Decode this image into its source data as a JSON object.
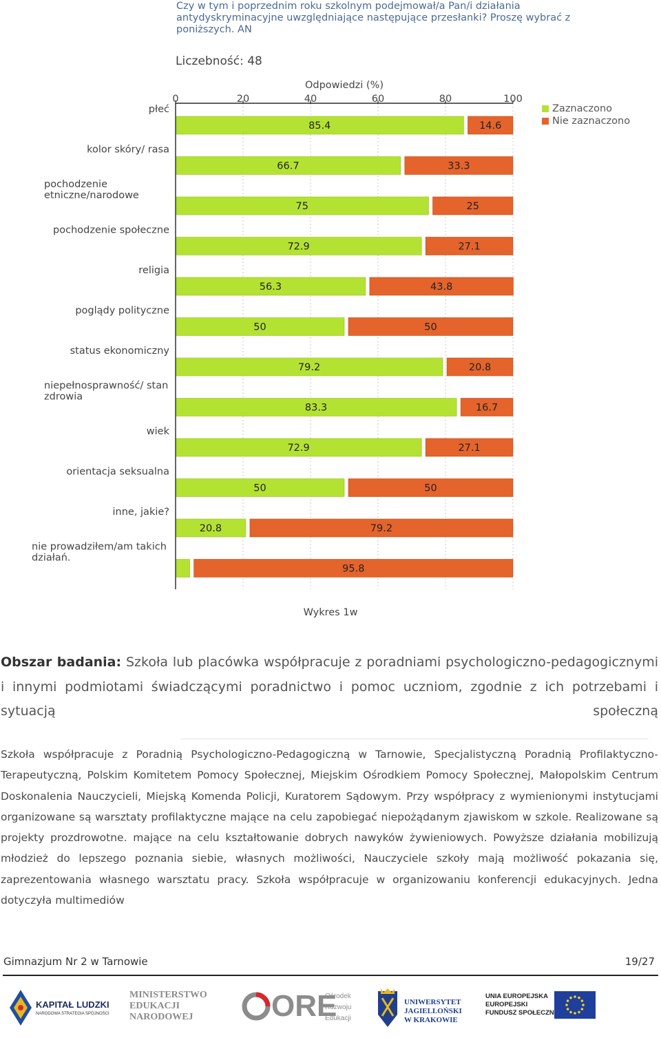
{
  "chart": {
    "title": "Czy w tym i poprzednim roku szkolnym podejmował/a Pan/i działania antydyskryminacyjne uwzględniające następujące przesłanki? Proszę wybrać z poniższych. AN",
    "count_label": "Liczebność: 48",
    "axis_title": "Odpowiedzi (%)",
    "caption": "Wykres 1w",
    "colors": {
      "selected": "#b4e233",
      "not_selected": "#e4642c",
      "axis": "#000000",
      "grid": "#c8c8c8"
    }
  },
  "chart_data": {
    "type": "bar",
    "orientation": "horizontal",
    "stacked": true,
    "xlabel": "Odpowiedzi (%)",
    "xlim": [
      0,
      100
    ],
    "xticks": [
      0,
      20,
      40,
      60,
      80,
      100
    ],
    "legend_position": "top-right",
    "categories": [
      "płeć",
      "kolor skóry/ rasa",
      "pochodzenie etniczne/narodowe",
      "pochodzenie społeczne",
      "religia",
      "poglądy polityczne",
      "status ekonomiczny",
      "niepełnosprawność/ stan zdrowia",
      "wiek",
      "orientacja seksualna",
      "inne, jakie?",
      "nie prowadziłem/am takich działań."
    ],
    "series": [
      {
        "name": "Zaznaczono",
        "color": "#b4e233",
        "values": [
          85.4,
          66.7,
          75,
          72.9,
          56.3,
          50,
          79.2,
          83.3,
          72.9,
          50,
          20.8,
          4.2
        ]
      },
      {
        "name": "Nie zaznaczono",
        "color": "#e4642c",
        "values": [
          14.6,
          33.3,
          25,
          27.1,
          43.8,
          50,
          20.8,
          16.7,
          27.1,
          50,
          79.2,
          95.8
        ]
      }
    ]
  },
  "area": {
    "label": "Obszar badania:",
    "text": "Szkoła lub placówka współpracuje z poradniami psychologiczno-pedagogicznymi i innymi podmiotami świadczącymi poradnictwo i pomoc uczniom, zgodnie z ich potrzebami i sytuacją społeczną"
  },
  "body_text": "Szkoła współpracuje z Poradnią Psychologiczno-Pedagogiczną w Tarnowie, Specjalistyczną Poradnią Profilaktyczno-Terapeutyczną, Polskim Komitetem Pomocy Społecznej, Miejskim Ośrodkiem Pomocy Społecznej, Małopolskim Centrum Doskonalenia Nauczycieli, Miejską Komenda Policji, Kuratorem Sądowym. Przy współpracy z wymienionymi instytucjami organizowane są warsztaty profilaktyczne mające na celu zapobiegać niepożądanym zjawiskom w szkole. Realizowane są projekty prozdrowotne. mające na celu kształtowanie dobrych nawyków żywieniowych. Powyższe działania mobilizują młodzież do lepszego poznania siebie, własnych możliwości, Nauczyciele szkoły mają możliwość pokazania się, zaprezentowania własnego warsztatu pracy. Szkoła współpracuje w organizowaniu konferencji edukacyjnych. Jedna dotyczyła multimediów",
  "footer": {
    "school": "Gimnazjum Nr 2 w Tarnowie",
    "page": "19/27"
  },
  "logos": {
    "kapital": {
      "line1": "KAPITAŁ LUDZKI",
      "line2": "NARODOWA STRATEGIA SPÓJNOŚCI"
    },
    "men": {
      "line1": "MINISTERSTWO",
      "line2": "EDUKACJI",
      "line3": "NARODOWEJ"
    },
    "ore": {
      "mark": "ORE",
      "line1": "Ośrodek",
      "line2": "Rozwoju",
      "line3": "Edukacji"
    },
    "uj": {
      "line1": "UNIWERSYTET",
      "line2": "JAGIELLOŃSKI",
      "line3": "W KRAKOWIE"
    },
    "ue": {
      "line1": "UNIA EUROPEJSKA",
      "line2": "EUROPEJSKI",
      "line3": "FUNDUSZ SPOŁECZNY"
    }
  }
}
